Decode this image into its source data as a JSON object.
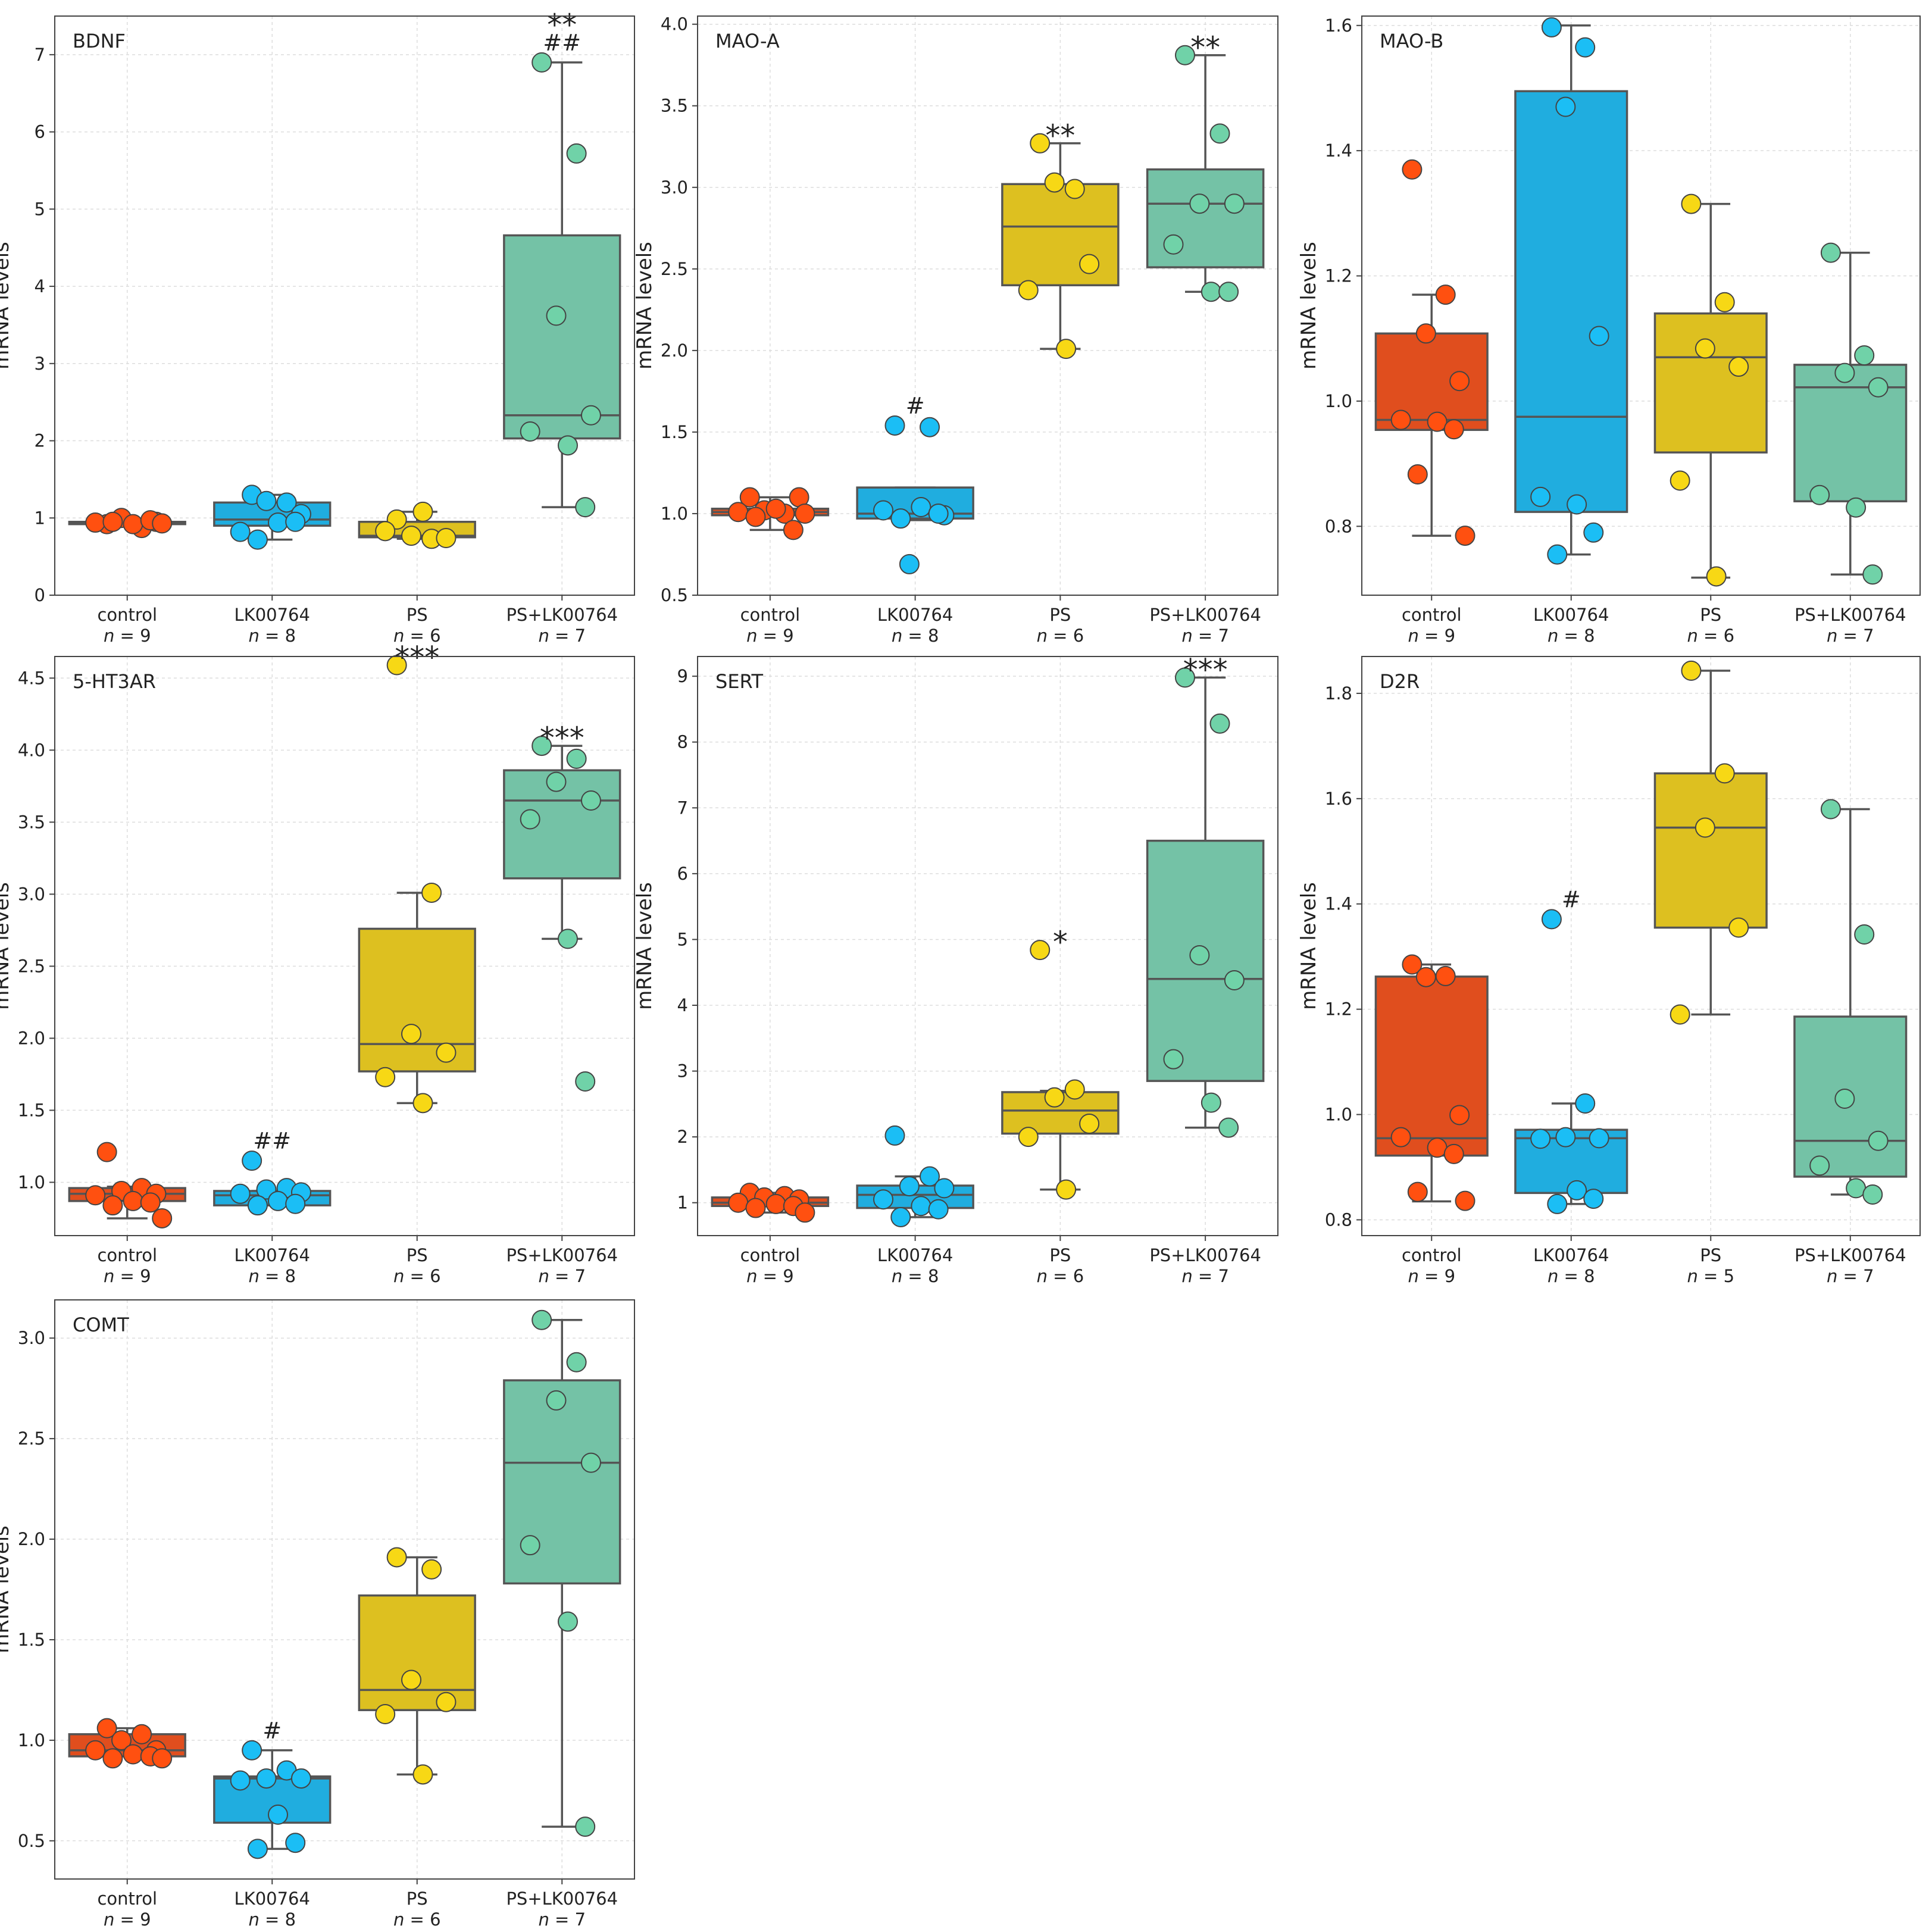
{
  "colors": {
    "control": "#E04E1E",
    "LK00764": "#20ADDF",
    "PS": "#DDC020",
    "PS+LK00764": "#74C2A6"
  },
  "point_colors": {
    "control": "#FF5010",
    "LK00764": "#1BBEF5",
    "PS": "#F7D815",
    "PS+LK00764": "#70D2A8"
  },
  "n_prefix": "n",
  "chart_data": [
    {
      "type": "box",
      "title": "BDNF",
      "ylabel": "mRNA levels",
      "ylim": [
        0,
        7.5
      ],
      "yticks": [
        0,
        1,
        2,
        3,
        4,
        5,
        6,
        7
      ],
      "groups": [
        {
          "name": "control",
          "n": "9",
          "box": {
            "q1": 0.92,
            "median": 0.93,
            "q3": 0.95,
            "lower": 0.9,
            "upper": 0.96
          },
          "points": [
            0.92,
            0.87,
            1.0,
            0.95,
            0.94,
            0.92,
            0.97,
            0.95,
            0.93
          ],
          "sig": []
        },
        {
          "name": "LK00764",
          "n": "8",
          "box": {
            "q1": 0.9,
            "median": 0.98,
            "q3": 1.2,
            "lower": 0.72,
            "upper": 1.3
          },
          "points": [
            1.3,
            1.2,
            1.22,
            1.05,
            0.82,
            0.94,
            0.95,
            0.72
          ],
          "sig": []
        },
        {
          "name": "PS",
          "n": "6",
          "box": {
            "q1": 0.75,
            "median": 0.77,
            "q3": 0.95,
            "lower": 0.73,
            "upper": 1.08
          },
          "points": [
            0.98,
            0.73,
            0.77,
            0.74,
            0.83,
            1.08
          ],
          "sig": []
        },
        {
          "name": "PS+LK00764",
          "n": "7",
          "box": {
            "q1": 2.03,
            "median": 2.33,
            "q3": 4.66,
            "lower": 1.14,
            "upper": 6.9
          },
          "points": [
            6.9,
            5.72,
            3.62,
            2.33,
            2.12,
            1.94,
            1.14
          ],
          "sig": [
            "##",
            "**"
          ]
        }
      ]
    },
    {
      "type": "box",
      "title": "MAO-A",
      "ylabel": "mRNA levels",
      "ylim": [
        0.5,
        4.05
      ],
      "yticks": [
        0.5,
        1.0,
        1.5,
        2.0,
        2.5,
        3.0,
        3.5,
        4.0
      ],
      "groups": [
        {
          "name": "control",
          "n": "9",
          "box": {
            "q1": 0.99,
            "median": 1.01,
            "q3": 1.03,
            "lower": 0.9,
            "upper": 1.1
          },
          "points": [
            1.1,
            1.0,
            1.02,
            1.1,
            1.01,
            1.03,
            0.9,
            0.98,
            1.0
          ],
          "sig": []
        },
        {
          "name": "LK00764",
          "n": "8",
          "box": {
            "q1": 0.97,
            "median": 1.0,
            "q3": 1.16,
            "lower": 0.96,
            "upper": 1.16
          },
          "points": [
            1.54,
            1.53,
            0.69,
            0.99,
            1.02,
            1.04,
            1.0,
            0.97
          ],
          "sig": [
            "#"
          ]
        },
        {
          "name": "PS",
          "n": "6",
          "box": {
            "q1": 2.4,
            "median": 2.76,
            "q3": 3.02,
            "lower": 2.01,
            "upper": 3.27
          },
          "points": [
            3.27,
            2.99,
            3.03,
            2.53,
            2.37,
            2.01
          ],
          "sig": [
            "**"
          ]
        },
        {
          "name": "PS+LK00764",
          "n": "7",
          "box": {
            "q1": 2.51,
            "median": 2.9,
            "q3": 3.11,
            "lower": 2.36,
            "upper": 3.81
          },
          "points": [
            3.81,
            3.33,
            2.9,
            2.9,
            2.65,
            2.36,
            2.36
          ],
          "sig": [
            "**"
          ]
        }
      ]
    },
    {
      "type": "box",
      "title": "MAO-B",
      "ylabel": "mRNA levels",
      "ylim": [
        0.69,
        1.615
      ],
      "yticks": [
        0.8,
        1.0,
        1.2,
        1.4,
        1.6
      ],
      "groups": [
        {
          "name": "control",
          "n": "9",
          "box": {
            "q1": 0.954,
            "median": 0.97,
            "q3": 1.108,
            "lower": 0.785,
            "upper": 1.17
          },
          "points": [
            1.37,
            1.17,
            1.108,
            1.032,
            0.97,
            0.967,
            0.955,
            0.883,
            0.785
          ],
          "sig": []
        },
        {
          "name": "LK00764",
          "n": "8",
          "box": {
            "q1": 0.823,
            "median": 0.975,
            "q3": 1.495,
            "lower": 0.755,
            "upper": 1.6
          },
          "points": [
            1.597,
            1.565,
            1.47,
            1.104,
            0.847,
            0.835,
            0.79,
            0.755
          ],
          "sig": []
        },
        {
          "name": "PS",
          "n": "6",
          "box": {
            "q1": 0.918,
            "median": 1.07,
            "q3": 1.14,
            "lower": 0.718,
            "upper": 1.315
          },
          "points": [
            1.315,
            1.158,
            1.084,
            1.055,
            0.873,
            0.72
          ],
          "sig": []
        },
        {
          "name": "PS+LK00764",
          "n": "7",
          "box": {
            "q1": 0.84,
            "median": 1.022,
            "q3": 1.058,
            "lower": 0.723,
            "upper": 1.237
          },
          "points": [
            1.237,
            1.073,
            1.045,
            1.022,
            0.85,
            0.83,
            0.723
          ],
          "sig": []
        }
      ]
    },
    {
      "type": "box",
      "title": "5-HT3AR",
      "ylabel": "mRNA levels",
      "ylim": [
        0.63,
        4.65
      ],
      "yticks": [
        1.0,
        1.5,
        2.0,
        2.5,
        3.0,
        3.5,
        4.0,
        4.5
      ],
      "groups": [
        {
          "name": "control",
          "n": "9",
          "box": {
            "q1": 0.87,
            "median": 0.92,
            "q3": 0.96,
            "lower": 0.75,
            "upper": 0.97
          },
          "points": [
            1.21,
            0.96,
            0.94,
            0.92,
            0.91,
            0.87,
            0.86,
            0.84,
            0.75
          ],
          "sig": []
        },
        {
          "name": "LK00764",
          "n": "8",
          "box": {
            "q1": 0.84,
            "median": 0.91,
            "q3": 0.94,
            "lower": 0.84,
            "upper": 0.94
          },
          "points": [
            1.15,
            0.96,
            0.95,
            0.93,
            0.92,
            0.87,
            0.85,
            0.84
          ],
          "sig": [
            "##"
          ]
        },
        {
          "name": "PS",
          "n": "6",
          "box": {
            "q1": 1.77,
            "median": 1.96,
            "q3": 2.76,
            "lower": 1.55,
            "upper": 3.01
          },
          "points": [
            4.59,
            3.01,
            2.03,
            1.9,
            1.73,
            1.55
          ],
          "sig": [
            "***"
          ]
        },
        {
          "name": "PS+LK00764",
          "n": "7",
          "box": {
            "q1": 3.11,
            "median": 3.65,
            "q3": 3.86,
            "lower": 2.69,
            "upper": 4.03
          },
          "points": [
            4.03,
            3.94,
            3.78,
            3.65,
            3.52,
            2.69,
            1.7
          ],
          "sig": [
            "***"
          ]
        }
      ]
    },
    {
      "type": "box",
      "title": "SERT",
      "ylabel": "mRNA levels",
      "ylim": [
        0.5,
        9.3
      ],
      "yticks": [
        1,
        2,
        3,
        4,
        5,
        6,
        7,
        8,
        9
      ],
      "groups": [
        {
          "name": "control",
          "n": "9",
          "box": {
            "q1": 0.95,
            "median": 1.0,
            "q3": 1.08,
            "lower": 0.85,
            "upper": 1.15
          },
          "points": [
            1.15,
            1.1,
            1.08,
            1.05,
            1.0,
            0.98,
            0.95,
            0.92,
            0.85
          ],
          "sig": []
        },
        {
          "name": "LK00764",
          "n": "8",
          "box": {
            "q1": 0.92,
            "median": 1.12,
            "q3": 1.26,
            "lower": 0.78,
            "upper": 1.4
          },
          "points": [
            2.02,
            1.4,
            1.25,
            1.22,
            1.05,
            0.95,
            0.9,
            0.78
          ],
          "sig": []
        },
        {
          "name": "PS",
          "n": "6",
          "box": {
            "q1": 2.05,
            "median": 2.4,
            "q3": 2.68,
            "lower": 1.2,
            "upper": 2.7
          },
          "points": [
            4.84,
            2.72,
            2.6,
            2.2,
            2.0,
            1.2
          ],
          "sig": [
            "*"
          ]
        },
        {
          "name": "PS+LK00764",
          "n": "7",
          "box": {
            "q1": 2.85,
            "median": 4.4,
            "q3": 6.5,
            "lower": 2.14,
            "upper": 8.98
          },
          "points": [
            8.98,
            8.28,
            4.76,
            4.38,
            3.18,
            2.52,
            2.14
          ],
          "sig": [
            "***"
          ]
        }
      ]
    },
    {
      "type": "box",
      "title": "D2R",
      "ylabel": "mRNA levels",
      "ylim": [
        0.77,
        1.87
      ],
      "yticks": [
        0.8,
        1.0,
        1.2,
        1.4,
        1.6,
        1.8
      ],
      "groups": [
        {
          "name": "control",
          "n": "9",
          "box": {
            "q1": 0.922,
            "median": 0.955,
            "q3": 1.262,
            "lower": 0.835,
            "upper": 1.285
          },
          "points": [
            1.285,
            1.263,
            1.261,
            0.999,
            0.957,
            0.937,
            0.925,
            0.853,
            0.836
          ],
          "sig": []
        },
        {
          "name": "LK00764",
          "n": "8",
          "box": {
            "q1": 0.851,
            "median": 0.955,
            "q3": 0.971,
            "lower": 0.83,
            "upper": 1.021
          },
          "points": [
            1.371,
            1.021,
            0.957,
            0.955,
            0.954,
            0.856,
            0.84,
            0.83
          ],
          "sig": [
            "#"
          ]
        },
        {
          "name": "PS",
          "n": "5",
          "box": {
            "q1": 1.355,
            "median": 1.545,
            "q3": 1.648,
            "lower": 1.19,
            "upper": 1.843
          },
          "points": [
            1.843,
            1.648,
            1.545,
            1.355,
            1.19
          ],
          "sig": []
        },
        {
          "name": "PS+LK00764",
          "n": "7",
          "box": {
            "q1": 0.882,
            "median": 0.95,
            "q3": 1.186,
            "lower": 0.848,
            "upper": 1.58
          },
          "points": [
            1.58,
            1.342,
            1.03,
            0.95,
            0.903,
            0.86,
            0.848
          ],
          "sig": []
        }
      ]
    },
    {
      "type": "box",
      "title": "COMT",
      "ylabel": "mRNA levels",
      "ylim": [
        0.31,
        3.19
      ],
      "yticks": [
        0.5,
        1.0,
        1.5,
        2.0,
        2.5,
        3.0
      ],
      "groups": [
        {
          "name": "control",
          "n": "9",
          "box": {
            "q1": 0.92,
            "median": 0.95,
            "q3": 1.03,
            "lower": 0.92,
            "upper": 1.06
          },
          "points": [
            1.06,
            1.03,
            1.0,
            0.95,
            0.95,
            0.93,
            0.92,
            0.91,
            0.91
          ],
          "sig": []
        },
        {
          "name": "LK00764",
          "n": "8",
          "box": {
            "q1": 0.59,
            "median": 0.81,
            "q3": 0.82,
            "lower": 0.46,
            "upper": 0.95
          },
          "points": [
            0.95,
            0.85,
            0.81,
            0.81,
            0.8,
            0.63,
            0.49,
            0.46
          ],
          "sig": [
            "#"
          ]
        },
        {
          "name": "PS",
          "n": "6",
          "box": {
            "q1": 1.15,
            "median": 1.25,
            "q3": 1.72,
            "lower": 0.83,
            "upper": 1.91
          },
          "points": [
            1.91,
            1.85,
            1.3,
            1.19,
            1.13,
            0.83
          ],
          "sig": []
        },
        {
          "name": "PS+LK00764",
          "n": "7",
          "box": {
            "q1": 1.78,
            "median": 2.38,
            "q3": 2.79,
            "lower": 0.57,
            "upper": 3.09
          },
          "points": [
            3.09,
            2.88,
            2.69,
            2.38,
            1.97,
            1.59,
            0.57
          ],
          "sig": []
        }
      ]
    }
  ]
}
